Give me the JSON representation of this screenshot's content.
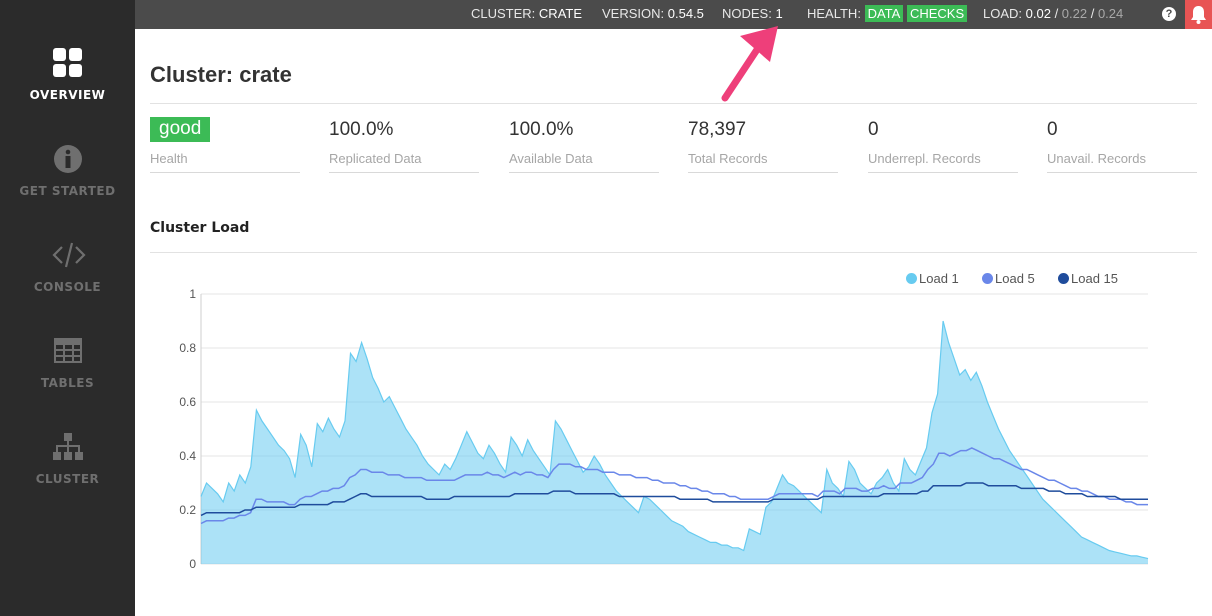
{
  "sidebar": {
    "items": [
      {
        "label": "OVERVIEW",
        "icon": "grid-icon",
        "active": true
      },
      {
        "label": "GET STARTED",
        "icon": "info-icon",
        "active": false
      },
      {
        "label": "CONSOLE",
        "icon": "code-icon",
        "active": false
      },
      {
        "label": "TABLES",
        "icon": "table-icon",
        "active": false
      },
      {
        "label": "CLUSTER",
        "icon": "cluster-icon",
        "active": false
      }
    ]
  },
  "topbar": {
    "cluster_label": "CLUSTER:",
    "cluster_value": "CRATE",
    "version_label": "VERSION:",
    "version_value": "0.54.5",
    "nodes_label": "NODES:",
    "nodes_value": "1",
    "health_label": "HEALTH:",
    "health_data": "DATA",
    "health_checks": "CHECKS",
    "load_label": "LOAD:",
    "load_1": "0.02",
    "load_sep1": " / ",
    "load_5": "0.22",
    "load_sep2": " / ",
    "load_15": "0.24",
    "help_icon": "?"
  },
  "page": {
    "title": "Cluster: crate"
  },
  "stats": [
    {
      "value": "good",
      "label": "Health"
    },
    {
      "value": "100.0%",
      "label": "Replicated Data"
    },
    {
      "value": "100.0%",
      "label": "Available Data"
    },
    {
      "value": "78,397",
      "label": "Total Records"
    },
    {
      "value": "0",
      "label": "Underrepl. Records"
    },
    {
      "value": "0",
      "label": "Unavail. Records"
    }
  ],
  "section": {
    "cluster_load_title": "Cluster Load"
  },
  "colors": {
    "load1": "#67cbf0",
    "load5": "#6a87e9",
    "load15": "#1f4c9c",
    "health_green": "#3cbb56",
    "alert_red": "#e85454"
  },
  "chart_data": {
    "type": "area",
    "ylim": [
      0,
      1
    ],
    "yticks": [
      "0",
      "0.2",
      "0.4",
      "0.6",
      "0.8",
      "1"
    ],
    "legend_position": "top-right",
    "series": [
      {
        "name": "Load 1",
        "values": [
          0.25,
          0.3,
          0.28,
          0.26,
          0.23,
          0.3,
          0.27,
          0.33,
          0.3,
          0.36,
          0.57,
          0.53,
          0.5,
          0.47,
          0.44,
          0.42,
          0.39,
          0.32,
          0.48,
          0.44,
          0.36,
          0.52,
          0.49,
          0.54,
          0.5,
          0.47,
          0.53,
          0.78,
          0.75,
          0.82,
          0.76,
          0.69,
          0.65,
          0.6,
          0.62,
          0.58,
          0.54,
          0.5,
          0.47,
          0.44,
          0.4,
          0.37,
          0.35,
          0.33,
          0.37,
          0.35,
          0.39,
          0.44,
          0.49,
          0.45,
          0.41,
          0.39,
          0.44,
          0.41,
          0.37,
          0.34,
          0.47,
          0.44,
          0.4,
          0.46,
          0.42,
          0.39,
          0.36,
          0.33,
          0.53,
          0.5,
          0.46,
          0.42,
          0.38,
          0.34,
          0.36,
          0.4,
          0.37,
          0.33,
          0.3,
          0.27,
          0.25,
          0.23,
          0.21,
          0.19,
          0.25,
          0.24,
          0.22,
          0.2,
          0.18,
          0.16,
          0.15,
          0.14,
          0.12,
          0.11,
          0.1,
          0.09,
          0.08,
          0.08,
          0.07,
          0.07,
          0.06,
          0.06,
          0.05,
          0.13,
          0.12,
          0.11,
          0.21,
          0.23,
          0.28,
          0.33,
          0.3,
          0.29,
          0.27,
          0.25,
          0.23,
          0.21,
          0.19,
          0.35,
          0.3,
          0.28,
          0.25,
          0.38,
          0.35,
          0.3,
          0.28,
          0.26,
          0.3,
          0.32,
          0.35,
          0.3,
          0.27,
          0.39,
          0.35,
          0.33,
          0.38,
          0.43,
          0.56,
          0.63,
          0.9,
          0.82,
          0.76,
          0.7,
          0.72,
          0.68,
          0.71,
          0.66,
          0.6,
          0.55,
          0.5,
          0.46,
          0.42,
          0.39,
          0.36,
          0.33,
          0.3,
          0.27,
          0.24,
          0.22,
          0.2,
          0.18,
          0.16,
          0.14,
          0.12,
          0.1,
          0.09,
          0.08,
          0.07,
          0.06,
          0.05,
          0.045,
          0.04,
          0.035,
          0.03,
          0.03,
          0.025,
          0.02
        ]
      },
      {
        "name": "Load 5",
        "values": [
          0.15,
          0.16,
          0.16,
          0.16,
          0.16,
          0.17,
          0.17,
          0.18,
          0.18,
          0.19,
          0.24,
          0.24,
          0.23,
          0.23,
          0.23,
          0.23,
          0.22,
          0.22,
          0.24,
          0.25,
          0.25,
          0.26,
          0.27,
          0.27,
          0.28,
          0.28,
          0.29,
          0.32,
          0.33,
          0.35,
          0.35,
          0.34,
          0.34,
          0.34,
          0.33,
          0.33,
          0.33,
          0.32,
          0.32,
          0.32,
          0.32,
          0.31,
          0.31,
          0.31,
          0.31,
          0.31,
          0.31,
          0.32,
          0.33,
          0.33,
          0.33,
          0.33,
          0.34,
          0.33,
          0.33,
          0.32,
          0.33,
          0.34,
          0.33,
          0.34,
          0.34,
          0.33,
          0.33,
          0.32,
          0.35,
          0.37,
          0.37,
          0.37,
          0.36,
          0.36,
          0.35,
          0.35,
          0.35,
          0.34,
          0.34,
          0.34,
          0.33,
          0.33,
          0.33,
          0.32,
          0.32,
          0.32,
          0.31,
          0.31,
          0.3,
          0.3,
          0.3,
          0.29,
          0.29,
          0.28,
          0.28,
          0.27,
          0.27,
          0.26,
          0.26,
          0.26,
          0.25,
          0.25,
          0.24,
          0.24,
          0.24,
          0.24,
          0.24,
          0.24,
          0.25,
          0.26,
          0.26,
          0.26,
          0.26,
          0.26,
          0.26,
          0.26,
          0.25,
          0.27,
          0.27,
          0.27,
          0.26,
          0.28,
          0.28,
          0.28,
          0.27,
          0.27,
          0.28,
          0.28,
          0.29,
          0.28,
          0.28,
          0.3,
          0.3,
          0.3,
          0.31,
          0.32,
          0.35,
          0.37,
          0.41,
          0.41,
          0.4,
          0.41,
          0.42,
          0.42,
          0.43,
          0.42,
          0.41,
          0.4,
          0.39,
          0.39,
          0.38,
          0.37,
          0.36,
          0.35,
          0.35,
          0.34,
          0.33,
          0.32,
          0.31,
          0.31,
          0.3,
          0.29,
          0.28,
          0.28,
          0.27,
          0.27,
          0.26,
          0.25,
          0.25,
          0.24,
          0.24,
          0.24,
          0.23,
          0.23,
          0.22,
          0.22,
          0.22
        ]
      },
      {
        "name": "Load 15",
        "values": [
          0.18,
          0.19,
          0.19,
          0.19,
          0.19,
          0.19,
          0.19,
          0.19,
          0.2,
          0.2,
          0.21,
          0.21,
          0.21,
          0.21,
          0.21,
          0.21,
          0.21,
          0.21,
          0.22,
          0.22,
          0.22,
          0.22,
          0.22,
          0.22,
          0.23,
          0.23,
          0.23,
          0.24,
          0.25,
          0.26,
          0.26,
          0.25,
          0.25,
          0.25,
          0.25,
          0.25,
          0.25,
          0.25,
          0.25,
          0.25,
          0.25,
          0.24,
          0.24,
          0.24,
          0.24,
          0.24,
          0.25,
          0.25,
          0.25,
          0.25,
          0.25,
          0.25,
          0.25,
          0.25,
          0.25,
          0.25,
          0.25,
          0.26,
          0.26,
          0.26,
          0.26,
          0.26,
          0.26,
          0.26,
          0.27,
          0.27,
          0.27,
          0.27,
          0.26,
          0.26,
          0.26,
          0.26,
          0.26,
          0.26,
          0.26,
          0.26,
          0.25,
          0.25,
          0.25,
          0.25,
          0.25,
          0.25,
          0.25,
          0.25,
          0.25,
          0.25,
          0.25,
          0.24,
          0.24,
          0.24,
          0.24,
          0.24,
          0.24,
          0.23,
          0.23,
          0.23,
          0.23,
          0.23,
          0.23,
          0.23,
          0.23,
          0.23,
          0.23,
          0.23,
          0.24,
          0.24,
          0.24,
          0.24,
          0.24,
          0.24,
          0.24,
          0.24,
          0.24,
          0.25,
          0.25,
          0.25,
          0.25,
          0.25,
          0.25,
          0.25,
          0.25,
          0.25,
          0.25,
          0.25,
          0.26,
          0.26,
          0.26,
          0.26,
          0.26,
          0.26,
          0.26,
          0.27,
          0.27,
          0.29,
          0.29,
          0.29,
          0.29,
          0.29,
          0.29,
          0.3,
          0.3,
          0.3,
          0.3,
          0.29,
          0.29,
          0.29,
          0.29,
          0.29,
          0.29,
          0.28,
          0.28,
          0.28,
          0.28,
          0.28,
          0.27,
          0.27,
          0.27,
          0.26,
          0.26,
          0.26,
          0.26,
          0.25,
          0.25,
          0.25,
          0.25,
          0.25,
          0.25,
          0.24,
          0.24,
          0.24,
          0.24,
          0.24,
          0.24
        ]
      }
    ]
  }
}
